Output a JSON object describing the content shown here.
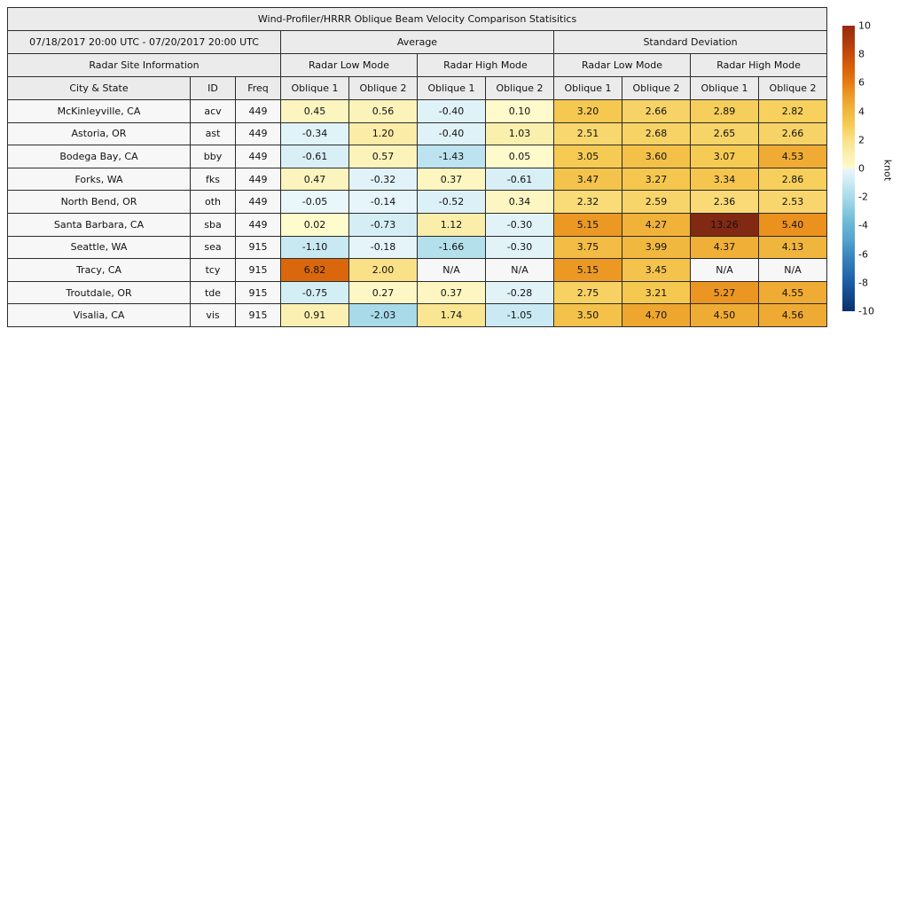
{
  "figure": {
    "title": "Wind-Profiler/HRRR Oblique Beam Velocity Comparison Statisitics",
    "date_range": "07/18/2017 20:00 UTC - 07/20/2017 20:00 UTC",
    "groups": {
      "average": "Average",
      "std": "Standard Deviation",
      "site_info": "Radar Site Information"
    },
    "mode_headers": [
      "Radar Low Mode",
      "Radar High Mode",
      "Radar Low Mode",
      "Radar High Mode"
    ],
    "columns": [
      "City & State",
      "ID",
      "Freq",
      "Oblique 1",
      "Oblique 2",
      "Oblique 1",
      "Oblique 2",
      "Oblique 1",
      "Oblique 2",
      "Oblique 1",
      "Oblique 2"
    ]
  },
  "chart_data": {
    "type": "heatmap",
    "title": "Wind-Profiler/HRRR Oblique Beam Velocity Comparison Statisitics",
    "subtitle": "07/18/2017 20:00 UTC - 07/20/2017 20:00 UTC",
    "value_unit": "knot",
    "column_groups": [
      "Average Radar Low Mode Oblique 1",
      "Average Radar Low Mode Oblique 2",
      "Average Radar High Mode Oblique 1",
      "Average Radar High Mode Oblique 2",
      "Std Dev Radar Low Mode Oblique 1",
      "Std Dev Radar Low Mode Oblique 2",
      "Std Dev Radar High Mode Oblique 1",
      "Std Dev Radar High Mode Oblique 2"
    ],
    "rows": [
      {
        "city": "McKinleyville, CA",
        "id": "acv",
        "freq": "449",
        "values": [
          "0.45",
          "0.56",
          "-0.40",
          "0.10",
          "3.20",
          "2.66",
          "2.89",
          "2.82"
        ]
      },
      {
        "city": "Astoria, OR",
        "id": "ast",
        "freq": "449",
        "values": [
          "-0.34",
          "1.20",
          "-0.40",
          "1.03",
          "2.51",
          "2.68",
          "2.65",
          "2.66"
        ]
      },
      {
        "city": "Bodega Bay, CA",
        "id": "bby",
        "freq": "449",
        "values": [
          "-0.61",
          "0.57",
          "-1.43",
          "0.05",
          "3.05",
          "3.60",
          "3.07",
          "4.53"
        ]
      },
      {
        "city": "Forks, WA",
        "id": "fks",
        "freq": "449",
        "values": [
          "0.47",
          "-0.32",
          "0.37",
          "-0.61",
          "3.47",
          "3.27",
          "3.34",
          "2.86"
        ]
      },
      {
        "city": "North Bend, OR",
        "id": "oth",
        "freq": "449",
        "values": [
          "-0.05",
          "-0.14",
          "-0.52",
          "0.34",
          "2.32",
          "2.59",
          "2.36",
          "2.53"
        ]
      },
      {
        "city": "Santa Barbara, CA",
        "id": "sba",
        "freq": "449",
        "values": [
          "0.02",
          "-0.73",
          "1.12",
          "-0.30",
          "5.15",
          "4.27",
          "13.26",
          "5.40"
        ]
      },
      {
        "city": "Seattle, WA",
        "id": "sea",
        "freq": "915",
        "values": [
          "-1.10",
          "-0.18",
          "-1.66",
          "-0.30",
          "3.75",
          "3.99",
          "4.37",
          "4.13"
        ]
      },
      {
        "city": "Tracy, CA",
        "id": "tcy",
        "freq": "915",
        "values": [
          "6.82",
          "2.00",
          "N/A",
          "N/A",
          "5.15",
          "3.45",
          "N/A",
          "N/A"
        ]
      },
      {
        "city": "Troutdale, OR",
        "id": "tde",
        "freq": "915",
        "values": [
          "-0.75",
          "0.27",
          "0.37",
          "-0.28",
          "2.75",
          "3.21",
          "5.27",
          "4.55"
        ]
      },
      {
        "city": "Visalia, CA",
        "id": "vis",
        "freq": "915",
        "values": [
          "0.91",
          "-2.03",
          "1.74",
          "-1.05",
          "3.50",
          "4.70",
          "4.50",
          "4.56"
        ]
      }
    ],
    "colorbar": {
      "label": "knot",
      "vmin": -10,
      "vmax": 10,
      "ticks": [
        10,
        8,
        6,
        4,
        2,
        0,
        -2,
        -4,
        -6,
        -8,
        -10
      ]
    }
  },
  "colors": {
    "header_bg": "#ebebeb",
    "label_bg": "#f7f7f7",
    "border": "#2b2b2b",
    "warm_anchors": [
      [
        0,
        "#FEFBCE"
      ],
      [
        0.5,
        "#FCF4BD"
      ],
      [
        1,
        "#FBEFAE"
      ],
      [
        1.5,
        "#FAE89C"
      ],
      [
        2,
        "#FAE187"
      ],
      [
        2.5,
        "#F8D76F"
      ],
      [
        3,
        "#F6CC55"
      ],
      [
        3.5,
        "#F4C24A"
      ],
      [
        4,
        "#F1B83F"
      ],
      [
        4.5,
        "#EFAC34"
      ],
      [
        5,
        "#ED9E28"
      ],
      [
        5.5,
        "#EA8E1C"
      ],
      [
        6,
        "#E67C13"
      ],
      [
        7,
        "#D8620B"
      ],
      [
        8,
        "#C64B09"
      ],
      [
        9,
        "#AC390C"
      ],
      [
        10,
        "#962B0E"
      ],
      [
        14,
        "#7E2814"
      ]
    ],
    "cool_anchors": [
      [
        -0.001,
        "#EAF6FA"
      ],
      [
        -0.5,
        "#DCF1F7"
      ],
      [
        -1,
        "#CCEAF3"
      ],
      [
        -1.5,
        "#B9E2EE"
      ],
      [
        -2,
        "#A9DBE9"
      ],
      [
        -2.5,
        "#97D2E4"
      ],
      [
        -3,
        "#85C9DE"
      ],
      [
        -4,
        "#68B4D4"
      ],
      [
        -5,
        "#55A4CC"
      ],
      [
        -6,
        "#3D89C0"
      ],
      [
        -7,
        "#2D74B2"
      ],
      [
        -8,
        "#1D5CA5"
      ],
      [
        -9,
        "#124787"
      ],
      [
        -10,
        "#0A306B"
      ]
    ]
  }
}
